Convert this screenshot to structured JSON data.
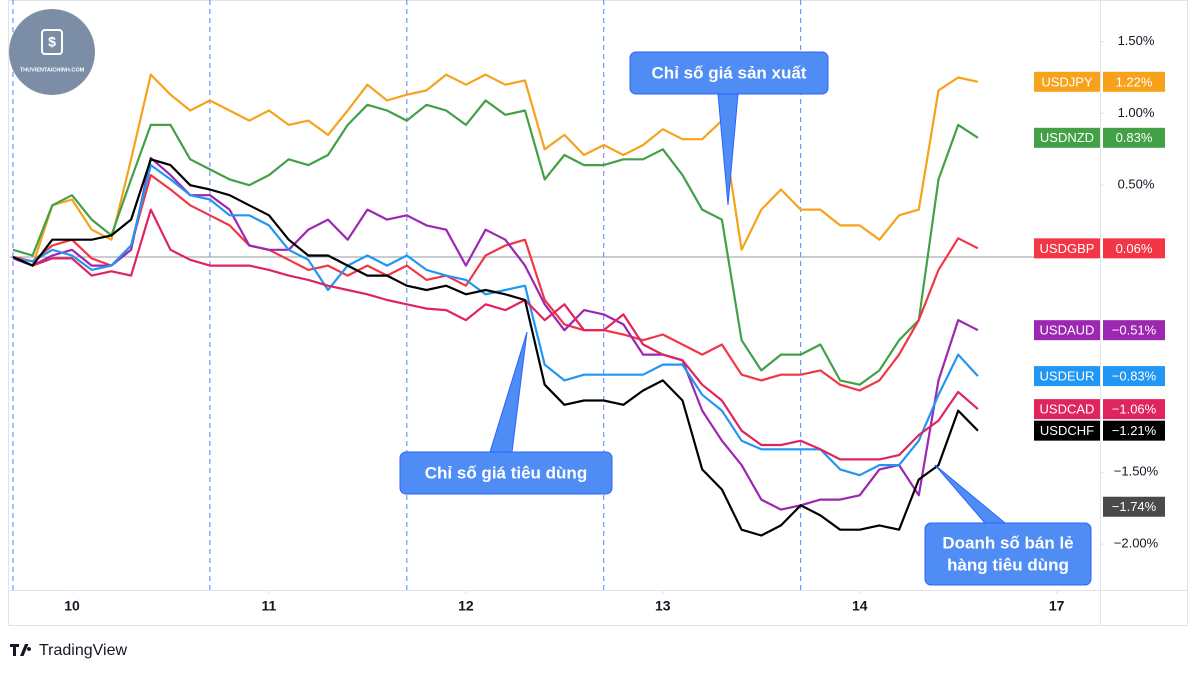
{
  "chart_data": {
    "type": "line",
    "watermark": "THUVIENTAICHINH.COM",
    "brand": "TradingView",
    "x": [
      -0.3,
      -0.2,
      -0.1,
      0,
      0.1,
      0.2,
      0.3,
      0.4,
      0.5,
      0.6,
      0.7,
      0.8,
      0.9,
      1,
      1.1,
      1.2,
      1.3,
      1.4,
      1.5,
      1.6,
      1.7,
      1.8,
      1.9,
      2,
      2.1,
      2.2,
      2.3,
      2.4,
      2.5,
      2.6,
      2.7,
      2.8,
      2.9,
      3,
      3.1,
      3.2,
      3.3,
      3.4,
      3.5,
      3.6,
      3.7,
      3.8,
      3.9,
      4,
      4.1,
      4.2,
      4.3,
      4.4,
      4.5,
      4.6
    ],
    "xlim": [
      -0.315,
      5.22
    ],
    "xticks": [
      {
        "value": 0,
        "label": "10"
      },
      {
        "value": 1,
        "label": "11"
      },
      {
        "value": 2,
        "label": "12"
      },
      {
        "value": 3,
        "label": "13"
      },
      {
        "value": 4,
        "label": "14"
      },
      {
        "value": 5,
        "label": "17"
      }
    ],
    "session_breaks": [
      -0.3,
      0.7,
      1.7,
      2.7,
      3.7
    ],
    "ylim": [
      -2.32,
      1.79
    ],
    "yticks": [
      {
        "value": 1.5,
        "label": "1.50%"
      },
      {
        "value": 1.0,
        "label": "1.00%"
      },
      {
        "value": 0.5,
        "label": "0.50%"
      },
      {
        "value": -1.5,
        "label": "−1.50%"
      },
      {
        "value": -2.0,
        "label": "−2.00%"
      }
    ],
    "baseline": 0,
    "grid": false,
    "series": [
      {
        "name": "USDJPY",
        "color": "#f7a21b",
        "end_label": "1.22%",
        "values": [
          0,
          -0.06,
          0.36,
          0.4,
          0.19,
          0.12,
          0.68,
          1.27,
          1.13,
          1.02,
          1.09,
          1.02,
          0.95,
          1.02,
          0.92,
          0.95,
          0.85,
          1.02,
          1.2,
          1.09,
          1.13,
          1.16,
          1.27,
          1.2,
          1.27,
          1.2,
          1.23,
          0.75,
          0.85,
          0.71,
          0.78,
          0.71,
          0.78,
          0.89,
          0.82,
          0.82,
          0.95,
          0.05,
          0.33,
          0.47,
          0.33,
          0.33,
          0.22,
          0.22,
          0.12,
          0.29,
          0.33,
          1.16,
          1.25,
          1.22
        ]
      },
      {
        "name": "USDNZD",
        "color": "#43a047",
        "end_label": "0.83%",
        "values": [
          0.05,
          0.01,
          0.36,
          0.43,
          0.26,
          0.15,
          0.54,
          0.92,
          0.92,
          0.68,
          0.61,
          0.54,
          0.5,
          0.57,
          0.68,
          0.64,
          0.71,
          0.92,
          1.06,
          1.02,
          0.95,
          1.06,
          1.02,
          0.92,
          1.09,
          0.99,
          1.02,
          0.54,
          0.71,
          0.64,
          0.64,
          0.68,
          0.68,
          0.75,
          0.57,
          0.33,
          0.26,
          -0.58,
          -0.79,
          -0.68,
          -0.68,
          -0.61,
          -0.86,
          -0.89,
          -0.79,
          -0.58,
          -0.44,
          0.54,
          0.92,
          0.83
        ]
      },
      {
        "name": "USDGBP",
        "color": "#f23645",
        "end_label": "0.06%",
        "values": [
          0,
          -0.03,
          0.08,
          0.12,
          -0.01,
          -0.06,
          0.08,
          0.57,
          0.47,
          0.36,
          0.29,
          0.22,
          0.08,
          0.05,
          -0.02,
          -0.09,
          -0.06,
          -0.13,
          -0.06,
          -0.13,
          -0.06,
          -0.16,
          -0.13,
          -0.2,
          0.01,
          0.08,
          0.12,
          -0.3,
          -0.47,
          -0.51,
          -0.51,
          -0.54,
          -0.58,
          -0.54,
          -0.61,
          -0.68,
          -0.61,
          -0.82,
          -0.86,
          -0.82,
          -0.82,
          -0.79,
          -0.89,
          -0.93,
          -0.86,
          -0.68,
          -0.44,
          -0.09,
          0.13,
          0.06
        ]
      },
      {
        "name": "USDAUD",
        "color": "#9c27b0",
        "end_label": "−0.51%",
        "values": [
          -0.01,
          -0.06,
          0.01,
          0.05,
          -0.06,
          -0.06,
          0.05,
          0.69,
          0.57,
          0.43,
          0.43,
          0.33,
          0.08,
          0.05,
          0.05,
          0.19,
          0.26,
          0.12,
          0.33,
          0.26,
          0.29,
          0.22,
          0.19,
          -0.06,
          0.19,
          0.12,
          -0.06,
          -0.33,
          -0.51,
          -0.37,
          -0.4,
          -0.47,
          -0.68,
          -0.68,
          -0.72,
          -1.07,
          -1.28,
          -1.45,
          -1.69,
          -1.76,
          -1.73,
          -1.69,
          -1.69,
          -1.66,
          -1.48,
          -1.45,
          -1.66,
          -0.86,
          -0.44,
          -0.51
        ]
      },
      {
        "name": "USDEUR",
        "color": "#2196f3",
        "end_label": "−0.83%",
        "values": [
          -0.01,
          -0.03,
          0.05,
          0.01,
          -0.09,
          -0.06,
          0.08,
          0.64,
          0.54,
          0.43,
          0.4,
          0.29,
          0.29,
          0.22,
          0.05,
          -0.02,
          -0.23,
          -0.06,
          0.01,
          -0.06,
          0.01,
          -0.09,
          -0.13,
          -0.16,
          -0.26,
          -0.23,
          -0.2,
          -0.75,
          -0.86,
          -0.82,
          -0.82,
          -0.82,
          -0.82,
          -0.75,
          -0.75,
          -0.96,
          -1.07,
          -1.28,
          -1.34,
          -1.34,
          -1.34,
          -1.34,
          -1.48,
          -1.52,
          -1.45,
          -1.45,
          -1.28,
          -0.96,
          -0.68,
          -0.83
        ]
      },
      {
        "name": "USDCAD",
        "color": "#e0245e",
        "end_label": "−1.06%",
        "values": [
          0,
          -0.06,
          -0.01,
          -0.01,
          -0.13,
          -0.1,
          -0.13,
          0.33,
          0.05,
          -0.02,
          -0.06,
          -0.06,
          -0.06,
          -0.09,
          -0.13,
          -0.16,
          -0.2,
          -0.23,
          -0.26,
          -0.3,
          -0.33,
          -0.36,
          -0.37,
          -0.44,
          -0.33,
          -0.37,
          -0.3,
          -0.44,
          -0.33,
          -0.51,
          -0.51,
          -0.4,
          -0.61,
          -0.68,
          -0.72,
          -0.89,
          -1.0,
          -1.21,
          -1.31,
          -1.31,
          -1.28,
          -1.34,
          -1.41,
          -1.41,
          -1.41,
          -1.38,
          -1.24,
          -1.14,
          -0.94,
          -1.06
        ]
      },
      {
        "name": "USDCHF",
        "color": "#000000",
        "end_label": "−1.21%",
        "values": [
          0,
          -0.06,
          0.12,
          0.12,
          0.12,
          0.15,
          0.26,
          0.68,
          0.64,
          0.5,
          0.47,
          0.43,
          0.36,
          0.29,
          0.12,
          0.01,
          0.01,
          -0.06,
          -0.13,
          -0.13,
          -0.2,
          -0.23,
          -0.2,
          -0.26,
          -0.23,
          -0.26,
          -0.3,
          -0.89,
          -1.03,
          -1.0,
          -1.0,
          -1.03,
          -0.93,
          -0.86,
          -1.0,
          -1.48,
          -1.62,
          -1.9,
          -1.94,
          -1.87,
          -1.73,
          -1.8,
          -1.9,
          -1.9,
          -1.87,
          -1.9,
          -1.55,
          -1.45,
          -1.07,
          -1.21
        ]
      }
    ],
    "crosshair_label": {
      "value": -1.74,
      "label": "−1.74%"
    },
    "annotations": [
      {
        "lines": [
          "Chỉ số giá sản xuất"
        ]
      },
      {
        "lines": [
          "Chỉ số giá tiêu dùng"
        ]
      },
      {
        "lines": [
          "Doanh số bán lẻ",
          "hàng tiêu dùng"
        ]
      }
    ]
  }
}
